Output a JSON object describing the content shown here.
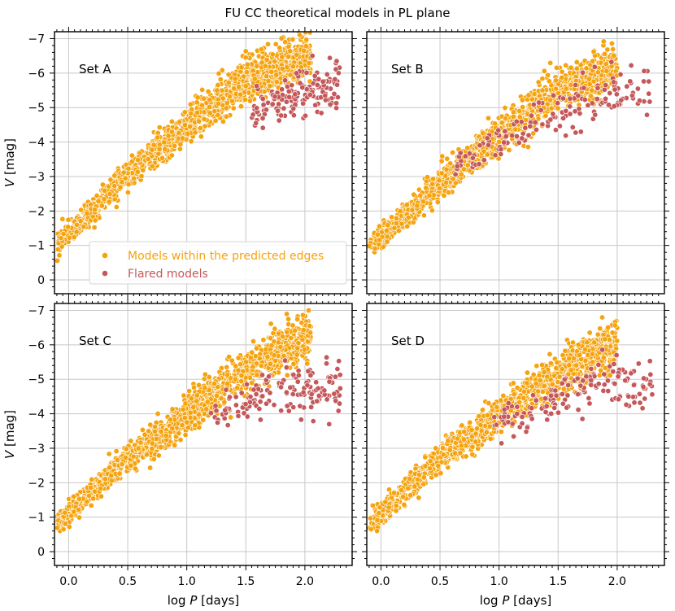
{
  "title": "FU CC theoretical models in PL plane",
  "colors": {
    "within": "#f5a30f",
    "flared": "#c4585a",
    "grid": "#c8c8c8"
  },
  "legend": {
    "within": "Models within the predicted edges",
    "flared": "Flared models",
    "location": "lower-left of Set A panel"
  },
  "xlabel_prefix": "log ",
  "xlabel_var": "P",
  "xlabel_suffix": " [days]",
  "ylabel_var": "V",
  "ylabel_suffix": " [mag]",
  "chart_data": [
    {
      "type": "scatter",
      "panel": "Set A",
      "xlim": [
        -0.12,
        2.4
      ],
      "ylim": [
        0.4,
        -7.2
      ],
      "xticks": [
        "0.0",
        "0.5",
        "1.0",
        "1.5",
        "2.0"
      ],
      "yticks": [
        "0",
        "-1",
        "-2",
        "-3",
        "-4",
        "-5",
        "-6",
        "-7"
      ],
      "grid": true,
      "series": [
        {
          "name": "Models within the predicted edges",
          "x_range": [
            -0.1,
            2.05
          ],
          "trend": {
            "x": [
              -0.1,
              0.5,
              1.0,
              1.5,
              1.9
            ],
            "y": [
              -1.0,
              -3.1,
              -4.5,
              -5.8,
              -6.3
            ]
          }
        },
        {
          "name": "Flared models",
          "x_range": [
            1.55,
            2.3
          ],
          "trend": {
            "x": [
              1.6,
              1.9,
              2.2
            ],
            "y": [
              -4.9,
              -5.3,
              -5.6
            ]
          }
        }
      ]
    },
    {
      "type": "scatter",
      "panel": "Set B",
      "xlim": [
        -0.12,
        2.4
      ],
      "ylim": [
        0.4,
        -7.2
      ],
      "xticks": [
        "0.0",
        "0.5",
        "1.0",
        "1.5",
        "2.0"
      ],
      "yticks": [
        "0",
        "-1",
        "-2",
        "-3",
        "-4",
        "-5",
        "-6",
        "-7"
      ],
      "grid": true,
      "series": [
        {
          "name": "Models within the predicted edges",
          "x_range": [
            -0.1,
            2.0
          ],
          "trend": {
            "x": [
              -0.1,
              0.5,
              1.0,
              1.5,
              1.85
            ],
            "y": [
              -0.9,
              -2.8,
              -4.2,
              -5.5,
              -6.0
            ]
          }
        },
        {
          "name": "Flared models",
          "x_range": [
            0.6,
            2.3
          ],
          "trend": {
            "x": [
              1.6,
              1.9,
              2.2
            ],
            "y": [
              -5.0,
              -5.5,
              -5.5
            ]
          }
        }
      ]
    },
    {
      "type": "scatter",
      "panel": "Set C",
      "xlim": [
        -0.12,
        2.4
      ],
      "ylim": [
        0.4,
        -7.2
      ],
      "xticks": [
        "0.0",
        "0.5",
        "1.0",
        "1.5",
        "2.0"
      ],
      "yticks": [
        "0",
        "-1",
        "-2",
        "-3",
        "-4",
        "-5",
        "-6",
        "-7"
      ],
      "grid": true,
      "series": [
        {
          "name": "Models within the predicted edges",
          "x_range": [
            -0.1,
            2.05
          ],
          "trend": {
            "x": [
              -0.1,
              0.5,
              1.0,
              1.5,
              1.9
            ],
            "y": [
              -0.8,
              -2.7,
              -4.0,
              -5.3,
              -6.0
            ]
          }
        },
        {
          "name": "Flared models",
          "x_range": [
            1.2,
            2.3
          ],
          "trend": {
            "x": [
              1.4,
              1.8,
              2.2
            ],
            "y": [
              -4.2,
              -4.7,
              -4.8
            ]
          }
        }
      ]
    },
    {
      "type": "scatter",
      "panel": "Set D",
      "xlim": [
        -0.12,
        2.4
      ],
      "ylim": [
        0.4,
        -7.2
      ],
      "xticks": [
        "0.0",
        "0.5",
        "1.0",
        "1.5",
        "2.0"
      ],
      "yticks": [
        "0",
        "-1",
        "-2",
        "-3",
        "-4",
        "-5",
        "-6",
        "-7"
      ],
      "grid": true,
      "series": [
        {
          "name": "Models within the predicted edges",
          "x_range": [
            -0.1,
            2.0
          ],
          "trend": {
            "x": [
              -0.1,
              0.5,
              1.0,
              1.5,
              1.85
            ],
            "y": [
              -0.8,
              -2.7,
              -4.0,
              -5.1,
              -5.8
            ]
          }
        },
        {
          "name": "Flared models",
          "x_range": [
            0.95,
            2.3
          ],
          "trend": {
            "x": [
              1.5,
              1.9,
              2.2
            ],
            "y": [
              -4.4,
              -4.9,
              -4.9
            ]
          }
        }
      ]
    }
  ]
}
